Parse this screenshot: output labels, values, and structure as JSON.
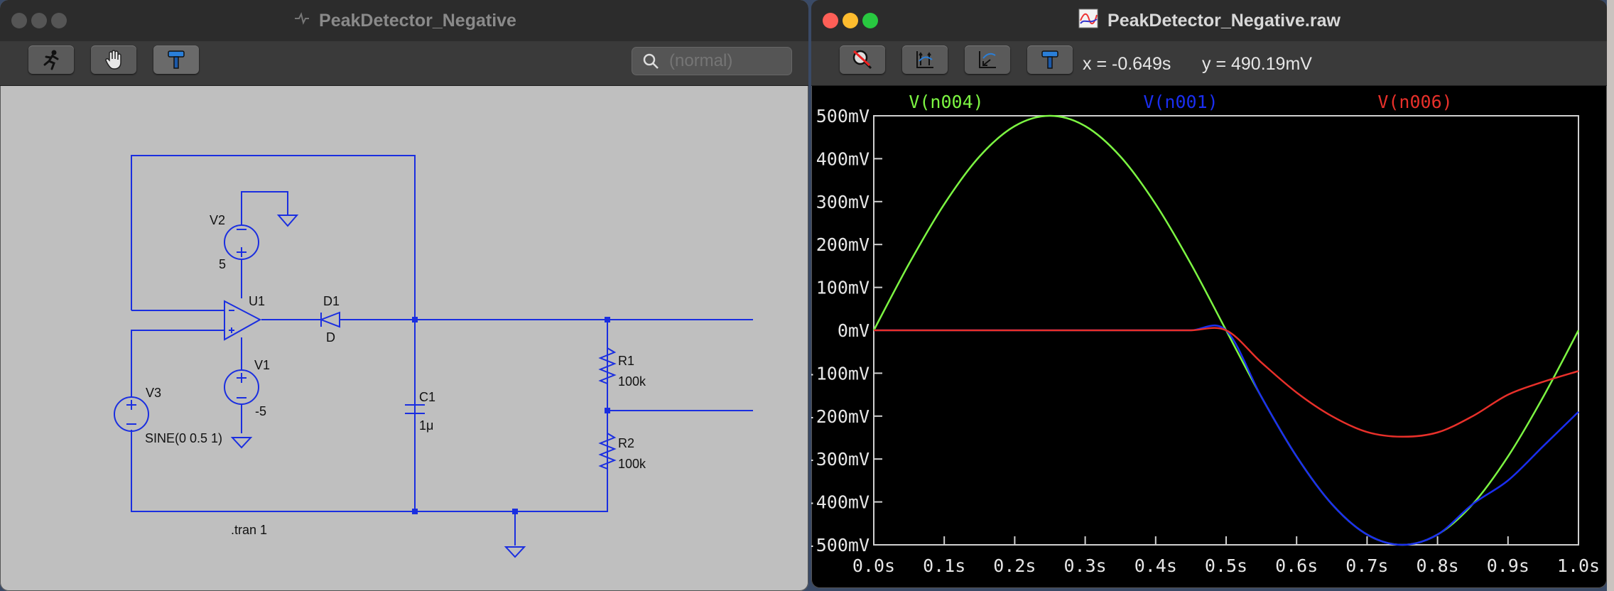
{
  "schematic_window": {
    "title": "PeakDetector_Negative",
    "search_placeholder": "(normal)",
    "toolbar": [
      "run-icon",
      "hand-icon",
      "hammer-icon"
    ],
    "components": {
      "v2_label": "V2",
      "v2_value": "5",
      "v1_label": "V1",
      "v1_value": "-5",
      "v3_label": "V3",
      "v3_value": "SINE(0 0.5 1)",
      "u1_label": "U1",
      "d1_label": "D1",
      "d1_value": "D",
      "c1_label": "C1",
      "c1_value": "1μ",
      "r1_label": "R1",
      "r1_value": "100k",
      "r2_label": "R2",
      "r2_value": "100k",
      "directive": ".tran 1"
    },
    "wire_color": "#1a2ee0"
  },
  "plot_window": {
    "title": "PeakDetector_Negative.raw",
    "toolbar": [
      "zoom-cancel-icon",
      "autorange-icon",
      "pan-back-icon",
      "hammer-icon"
    ],
    "cursor_x": "x = -0.649s",
    "cursor_y": "y = 490.19mV"
  },
  "chart_data": {
    "type": "line",
    "title": "",
    "xlabel": "",
    "ylabel": "",
    "xlim": [
      0.0,
      1.0
    ],
    "ylim": [
      -0.5,
      0.5
    ],
    "x_tick_labels": [
      "0.0s",
      "0.1s",
      "0.2s",
      "0.3s",
      "0.4s",
      "0.5s",
      "0.6s",
      "0.7s",
      "0.8s",
      "0.9s",
      "1.0s"
    ],
    "y_tick_labels": [
      "500mV",
      "400mV",
      "300mV",
      "200mV",
      "100mV",
      "0mV",
      "-100mV",
      "-200mV",
      "-300mV",
      "-400mV",
      "-500mV"
    ],
    "x": [
      0.0,
      0.05,
      0.1,
      0.15,
      0.2,
      0.25,
      0.3,
      0.35,
      0.4,
      0.45,
      0.5,
      0.55,
      0.6,
      0.65,
      0.7,
      0.75,
      0.8,
      0.85,
      0.9,
      0.95,
      1.0
    ],
    "series": [
      {
        "name": "V(n004)",
        "color": "#7cf542",
        "values": [
          0,
          0.155,
          0.294,
          0.405,
          0.476,
          0.5,
          0.476,
          0.405,
          0.294,
          0.155,
          0,
          -0.155,
          -0.294,
          -0.405,
          -0.476,
          -0.5,
          -0.476,
          -0.405,
          -0.294,
          -0.155,
          0
        ]
      },
      {
        "name": "V(n001)",
        "color": "#1a2ef0",
        "values": [
          0,
          0,
          0,
          0,
          0,
          0,
          0,
          0,
          0,
          0,
          0,
          -0.155,
          -0.294,
          -0.405,
          -0.476,
          -0.5,
          -0.476,
          -0.405,
          -0.35,
          -0.27,
          -0.19
        ]
      },
      {
        "name": "V(n006)",
        "color": "#e8302a",
        "values": [
          0,
          0,
          0,
          0,
          0,
          0,
          0,
          0,
          0,
          0,
          0,
          -0.075,
          -0.145,
          -0.2,
          -0.237,
          -0.248,
          -0.238,
          -0.2,
          -0.15,
          -0.12,
          -0.095
        ]
      }
    ],
    "grid": false,
    "legend": "top"
  }
}
